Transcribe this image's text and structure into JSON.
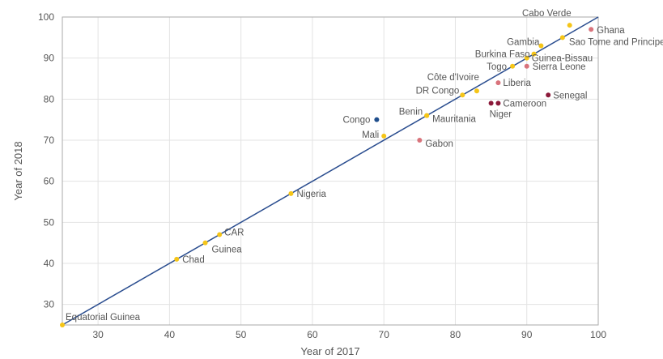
{
  "chart_data": {
    "type": "scatter",
    "title": "",
    "xlabel": "Year of 2017",
    "ylabel": "Year of 2018",
    "xlim": [
      25,
      100
    ],
    "ylim": [
      25,
      100
    ],
    "xticks": [
      30,
      40,
      50,
      60,
      70,
      80,
      90,
      100
    ],
    "yticks": [
      30,
      40,
      50,
      60,
      70,
      80,
      90,
      100
    ],
    "grid": true,
    "reference_line": "y = x",
    "colors": {
      "yellow": "#f5c518",
      "pink": "#d9737b",
      "maroon": "#8b1a3a",
      "navy": "#1f4e8c",
      "line": "#2a4d8f",
      "grid": "#e3e3e3",
      "axis": "#aaaaaa"
    },
    "points": [
      {
        "label": "Cabo Verde",
        "x": 96,
        "y": 98,
        "color": "yellow"
      },
      {
        "label": "Ghana",
        "x": 99,
        "y": 97,
        "color": "pink"
      },
      {
        "label": "Gambia",
        "x": 92,
        "y": 93,
        "color": "yellow"
      },
      {
        "label": "Sao Tome and Principe",
        "x": 95,
        "y": 95,
        "color": "yellow"
      },
      {
        "label": "Burkina Faso",
        "x": 91,
        "y": 91,
        "color": "yellow"
      },
      {
        "label": "Guinea-Bissau",
        "x": 90,
        "y": 90,
        "color": "yellow"
      },
      {
        "label": "Togo",
        "x": 88,
        "y": 88,
        "color": "yellow"
      },
      {
        "label": "Sierra Leone",
        "x": 90,
        "y": 88,
        "color": "pink"
      },
      {
        "label": "Liberia",
        "x": 86,
        "y": 84,
        "color": "pink"
      },
      {
        "label": "Côte d'Ivoire",
        "x": 83,
        "y": 82,
        "color": "yellow"
      },
      {
        "label": "DR Congo",
        "x": 81,
        "y": 81,
        "color": "yellow"
      },
      {
        "label": "Senegal",
        "x": 93,
        "y": 81,
        "color": "maroon"
      },
      {
        "label": "Cameroon",
        "x": 86,
        "y": 79,
        "color": "maroon"
      },
      {
        "label": "Niger",
        "x": 85,
        "y": 79,
        "color": "maroon"
      },
      {
        "label": "Congo",
        "x": 69,
        "y": 75,
        "color": "navy"
      },
      {
        "label": "Benin",
        "x": 76,
        "y": 76,
        "color": "yellow"
      },
      {
        "label": "Mauritania",
        "x": 76,
        "y": 76,
        "color": "yellow"
      },
      {
        "label": "Mali",
        "x": 70,
        "y": 71,
        "color": "yellow"
      },
      {
        "label": "Gabon",
        "x": 75,
        "y": 70,
        "color": "pink"
      },
      {
        "label": "Nigeria",
        "x": 57,
        "y": 57,
        "color": "yellow"
      },
      {
        "label": "CAR",
        "x": 47,
        "y": 47,
        "color": "yellow"
      },
      {
        "label": "Guinea",
        "x": 45,
        "y": 45,
        "color": "yellow"
      },
      {
        "label": "Chad",
        "x": 41,
        "y": 41,
        "color": "yellow"
      },
      {
        "label": "Equatorial Guinea",
        "x": 25,
        "y": 25,
        "color": "yellow"
      }
    ]
  }
}
